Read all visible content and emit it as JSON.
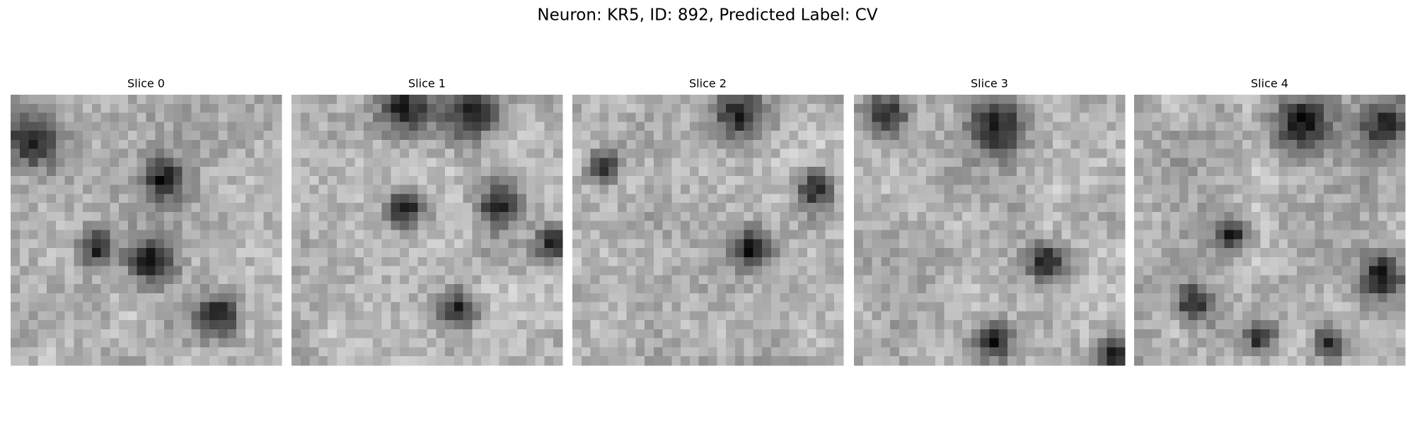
{
  "title": "Neuron: KR5, ID: 892, Predicted Label: CV",
  "slices": [
    "Slice 0",
    "Slice 1",
    "Slice 2",
    "Slice 3",
    "Slice 4"
  ]
}
